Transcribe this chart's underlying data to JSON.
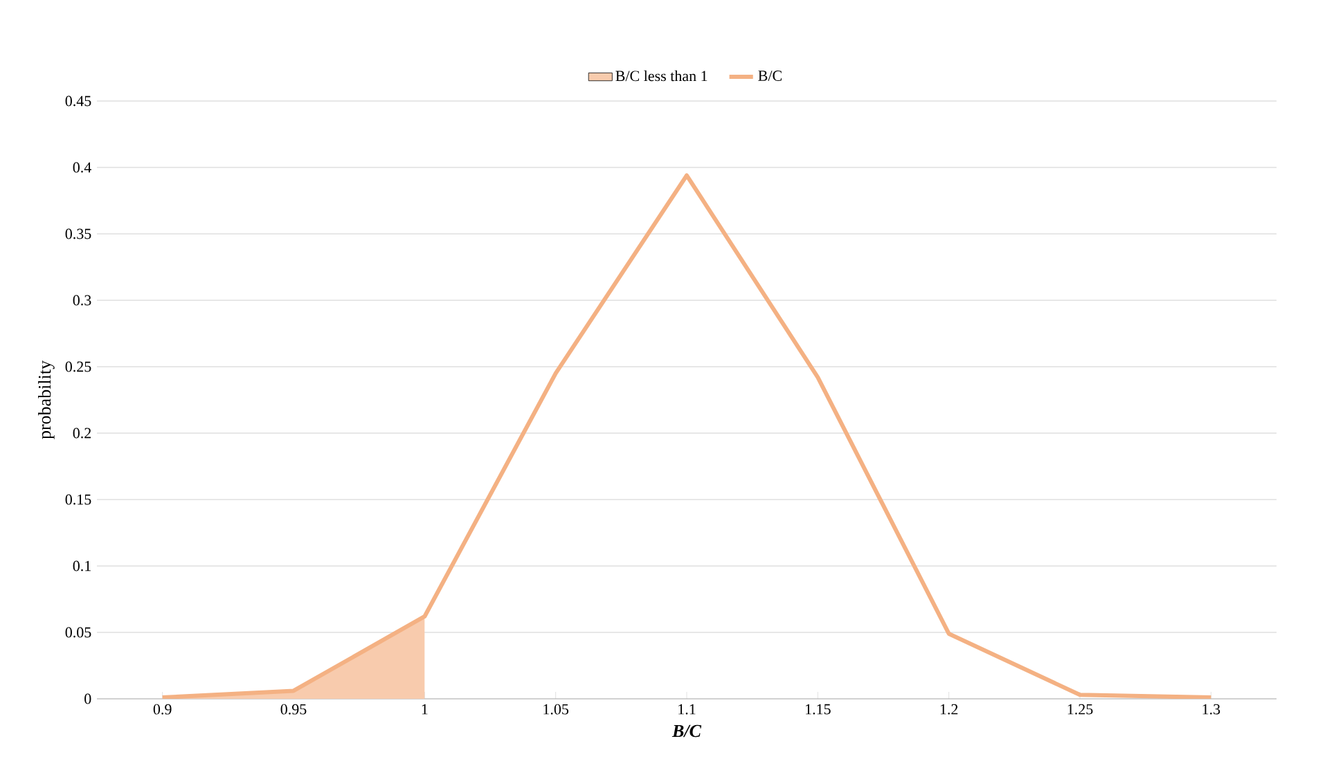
{
  "chart_data": {
    "type": "line",
    "xlabel": "B/C",
    "ylabel": "probability",
    "categories": [
      "0.9",
      "0.95",
      "1",
      "1.05",
      "1.1",
      "1.15",
      "1.2",
      "1.25",
      "1.3"
    ],
    "series": [
      {
        "name": "B/C less than 1",
        "type": "area",
        "color": "#f8cbad",
        "values": [
          0.001,
          0.006,
          0.062,
          null,
          null,
          null,
          null,
          null,
          null
        ]
      },
      {
        "name": "B/C",
        "color": "#f4b183",
        "line_style": "solid",
        "values": [
          0.001,
          0.006,
          0.062,
          0.245,
          0.394,
          0.242,
          0.049,
          0.003,
          0.001
        ]
      }
    ],
    "ylim": [
      0,
      0.45
    ],
    "yticks": [
      0,
      0.05,
      0.1,
      0.15,
      0.2,
      0.25,
      0.3,
      0.35,
      0.4,
      0.45
    ],
    "grid": "y",
    "legend": "top",
    "marker": "none"
  }
}
